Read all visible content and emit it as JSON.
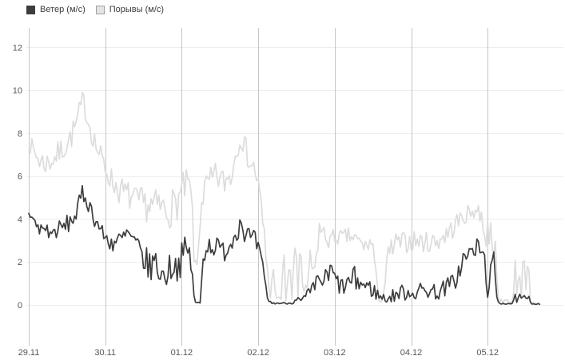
{
  "legend": {
    "items": [
      {
        "label": "Ветер (м/с)",
        "swatch_color": "#3d3d3d",
        "swatch_border": "#3d3d3d"
      },
      {
        "label": "Порывы (м/с)",
        "swatch_color": "#e4e4e4",
        "swatch_border": "#a0a0a0"
      }
    ]
  },
  "colors": {
    "background": "#ffffff",
    "grid_horizontal": "#ededed",
    "grid_vertical": "#c6c6c6",
    "axis_text": "#565656",
    "wind_line": "#3d3d3d",
    "gusts_line": "#dcdcdc"
  },
  "chart_data": {
    "type": "line",
    "title": "",
    "xlabel": "",
    "ylabel": "",
    "x_unit": "days since 29.11 00:00",
    "y_unit": "м/с",
    "grid": true,
    "legend_position": "top-left",
    "ylim": [
      0,
      12.5
    ],
    "xlim": [
      0,
      7.0
    ],
    "yticks": [
      0,
      2,
      4,
      6,
      8,
      10,
      12
    ],
    "xticks": [
      {
        "t": 0,
        "label": "29.11"
      },
      {
        "t": 1,
        "label": "30.11"
      },
      {
        "t": 2,
        "label": "01.12"
      },
      {
        "t": 3,
        "label": "02.12"
      },
      {
        "t": 4,
        "label": "03.12"
      },
      {
        "t": 5,
        "label": "04.12"
      },
      {
        "t": 6,
        "label": "05.12"
      }
    ],
    "sampling": {
      "step_days": 0.02,
      "t_end": 6.68,
      "noise_seed": 7
    },
    "series": [
      {
        "name": "Порывы (м/с)",
        "color": "#dcdcdc",
        "keyframes": [
          [
            0,
            7.6,
            0.4
          ],
          [
            0.07,
            7.1,
            0.5
          ],
          [
            0.15,
            6.7,
            0.6
          ],
          [
            0.25,
            6.6,
            0.6
          ],
          [
            0.35,
            6.9,
            0.6
          ],
          [
            0.45,
            7.3,
            0.6
          ],
          [
            0.55,
            7.8,
            0.6
          ],
          [
            0.63,
            8.5,
            0.6
          ],
          [
            0.71,
            9.6,
            0.5
          ],
          [
            0.76,
            8.8,
            0.5
          ],
          [
            0.83,
            8.0,
            0.6
          ],
          [
            0.9,
            7.2,
            0.6
          ],
          [
            1.0,
            6.4,
            0.6
          ],
          [
            1.1,
            5.7,
            0.6
          ],
          [
            1.2,
            5.3,
            0.7
          ],
          [
            1.3,
            5.1,
            0.7
          ],
          [
            1.4,
            4.8,
            0.7
          ],
          [
            1.5,
            4.7,
            0.8
          ],
          [
            1.6,
            4.6,
            0.8
          ],
          [
            1.7,
            4.6,
            0.8
          ],
          [
            1.8,
            4.4,
            0.9
          ],
          [
            1.9,
            4.6,
            0.9
          ],
          [
            2.0,
            5.2,
            0.9
          ],
          [
            2.05,
            5.5,
            0.8
          ],
          [
            2.08,
            5.6,
            0.8
          ],
          [
            2.13,
            5.0,
            0.7
          ],
          [
            2.17,
            1.5,
            0.4
          ],
          [
            2.21,
            2.0,
            0.6
          ],
          [
            2.25,
            4.8,
            0.7
          ],
          [
            2.32,
            5.5,
            0.7
          ],
          [
            2.35,
            5.6,
            0.7
          ],
          [
            2.45,
            6.0,
            0.7
          ],
          [
            2.55,
            5.7,
            0.7
          ],
          [
            2.65,
            6.1,
            0.7
          ],
          [
            2.72,
            7.3,
            0.6
          ],
          [
            2.77,
            7.9,
            0.5
          ],
          [
            2.83,
            7.3,
            0.6
          ],
          [
            2.9,
            6.6,
            0.6
          ],
          [
            2.97,
            6.2,
            0.6
          ],
          [
            3.03,
            4.8,
            0.7
          ],
          [
            3.08,
            3.0,
            0.9
          ],
          [
            3.16,
            0.3,
            0.2
          ],
          [
            3.2,
            1.9,
            0.3
          ],
          [
            3.23,
            0.2,
            0.15
          ],
          [
            3.31,
            0.3,
            0.2
          ],
          [
            3.33,
            3.1,
            0.2
          ],
          [
            3.36,
            0.3,
            0.2
          ],
          [
            3.41,
            2.0,
            0.3
          ],
          [
            3.44,
            0.3,
            0.2
          ],
          [
            3.49,
            3.2,
            0.3
          ],
          [
            3.52,
            0.5,
            0.3
          ],
          [
            3.55,
            3.3,
            0.3
          ],
          [
            3.58,
            0.6,
            0.4
          ],
          [
            3.64,
            0.5,
            0.4
          ],
          [
            3.68,
            2.6,
            0.4
          ],
          [
            3.71,
            1.0,
            0.5
          ],
          [
            3.76,
            2.2,
            0.6
          ],
          [
            3.8,
            3.6,
            0.5
          ],
          [
            3.87,
            3.2,
            0.5
          ],
          [
            3.95,
            3.0,
            0.5
          ],
          [
            4.02,
            3.2,
            0.4
          ],
          [
            4.1,
            3.1,
            0.4
          ],
          [
            4.18,
            3.2,
            0.4
          ],
          [
            4.26,
            3.1,
            0.4
          ],
          [
            4.33,
            2.9,
            0.4
          ],
          [
            4.4,
            2.7,
            0.4
          ],
          [
            4.45,
            2.9,
            0.35
          ],
          [
            4.5,
            2.8,
            0.4
          ],
          [
            4.56,
            0.5,
            0.4
          ],
          [
            4.63,
            0.3,
            0.25
          ],
          [
            4.7,
            2.2,
            0.7
          ],
          [
            4.78,
            2.8,
            0.6
          ],
          [
            4.9,
            2.9,
            0.5
          ],
          [
            5.05,
            3.0,
            0.5
          ],
          [
            5.2,
            2.9,
            0.5
          ],
          [
            5.35,
            3.0,
            0.5
          ],
          [
            5.5,
            3.4,
            0.5
          ],
          [
            5.62,
            3.9,
            0.5
          ],
          [
            5.72,
            4.2,
            0.4
          ],
          [
            5.82,
            4.4,
            0.4
          ],
          [
            5.88,
            4.4,
            0.4
          ],
          [
            5.95,
            3.8,
            0.7
          ],
          [
            6.0,
            3.0,
            1.2
          ],
          [
            6.04,
            4.2,
            0.4
          ],
          [
            6.07,
            1.0,
            0.7
          ],
          [
            6.1,
            3.0,
            1.0
          ],
          [
            6.13,
            0.3,
            0.2
          ],
          [
            6.33,
            0.08,
            0.05
          ],
          [
            6.36,
            1.9,
            0.2
          ],
          [
            6.385,
            0.3,
            0.2
          ],
          [
            6.41,
            2.0,
            0.3
          ],
          [
            6.44,
            0.4,
            0.3
          ],
          [
            6.47,
            2.6,
            0.2
          ],
          [
            6.5,
            0.5,
            0.3
          ],
          [
            6.53,
            2.2,
            0.3
          ],
          [
            6.56,
            0.1,
            0.05
          ],
          [
            6.68,
            0.05,
            0.03
          ]
        ]
      },
      {
        "name": "Ветер (м/с)",
        "color": "#3d3d3d",
        "keyframes": [
          [
            0,
            4.35,
            0.25
          ],
          [
            0.07,
            3.9,
            0.3
          ],
          [
            0.13,
            3.5,
            0.4
          ],
          [
            0.2,
            3.6,
            0.35
          ],
          [
            0.3,
            3.3,
            0.4
          ],
          [
            0.37,
            3.5,
            0.4
          ],
          [
            0.45,
            3.6,
            0.45
          ],
          [
            0.55,
            3.9,
            0.45
          ],
          [
            0.63,
            4.3,
            0.45
          ],
          [
            0.7,
            5.2,
            0.4
          ],
          [
            0.74,
            5.0,
            0.45
          ],
          [
            0.8,
            4.6,
            0.4
          ],
          [
            0.86,
            4.0,
            0.35
          ],
          [
            0.93,
            3.6,
            0.3
          ],
          [
            1.0,
            3.1,
            0.4
          ],
          [
            1.1,
            2.9,
            0.5
          ],
          [
            1.2,
            3.0,
            0.5
          ],
          [
            1.3,
            3.3,
            0.5
          ],
          [
            1.4,
            2.8,
            0.5
          ],
          [
            1.5,
            2.2,
            0.7
          ],
          [
            1.57,
            1.7,
            0.8
          ],
          [
            1.65,
            2.1,
            0.6
          ],
          [
            1.73,
            1.3,
            0.6
          ],
          [
            1.8,
            1.5,
            0.7
          ],
          [
            1.88,
            1.9,
            0.7
          ],
          [
            1.95,
            1.8,
            0.7
          ],
          [
            2.02,
            2.3,
            0.8
          ],
          [
            2.08,
            2.6,
            0.8
          ],
          [
            2.14,
            1.6,
            0.6
          ],
          [
            2.165,
            0.1,
            0.05
          ],
          [
            2.245,
            0.1,
            0.05
          ],
          [
            2.28,
            2.4,
            0.5
          ],
          [
            2.35,
            2.8,
            0.5
          ],
          [
            2.45,
            2.7,
            0.5
          ],
          [
            2.55,
            2.5,
            0.5
          ],
          [
            2.65,
            2.9,
            0.5
          ],
          [
            2.72,
            3.6,
            0.6
          ],
          [
            2.78,
            3.9,
            0.6
          ],
          [
            2.84,
            3.3,
            0.6
          ],
          [
            2.9,
            3.1,
            0.5
          ],
          [
            2.97,
            2.9,
            0.5
          ],
          [
            3.03,
            2.2,
            0.5
          ],
          [
            3.09,
            0.9,
            0.5
          ],
          [
            3.13,
            0.25,
            0.15
          ],
          [
            3.17,
            0.08,
            0.04
          ],
          [
            3.45,
            0.08,
            0.04
          ],
          [
            3.5,
            0.35,
            0.2
          ],
          [
            3.56,
            0.15,
            0.1
          ],
          [
            3.62,
            0.4,
            0.25
          ],
          [
            3.7,
            0.6,
            0.35
          ],
          [
            3.8,
            1.2,
            0.5
          ],
          [
            3.87,
            1.1,
            0.5
          ],
          [
            3.95,
            1.5,
            0.8
          ],
          [
            4.02,
            1.1,
            0.5
          ],
          [
            4.1,
            0.8,
            0.45
          ],
          [
            4.18,
            1.0,
            0.5
          ],
          [
            4.26,
            1.2,
            0.6
          ],
          [
            4.33,
            1.0,
            0.5
          ],
          [
            4.4,
            0.9,
            0.5
          ],
          [
            4.5,
            0.7,
            0.4
          ],
          [
            4.6,
            0.35,
            0.25
          ],
          [
            4.7,
            0.3,
            0.25
          ],
          [
            4.8,
            0.5,
            0.35
          ],
          [
            4.9,
            0.6,
            0.4
          ],
          [
            5.05,
            0.6,
            0.4
          ],
          [
            5.2,
            0.7,
            0.4
          ],
          [
            5.35,
            0.6,
            0.4
          ],
          [
            5.5,
            0.9,
            0.45
          ],
          [
            5.6,
            1.3,
            0.5
          ],
          [
            5.68,
            2.1,
            0.5
          ],
          [
            5.78,
            2.4,
            0.5
          ],
          [
            5.87,
            2.7,
            0.45
          ],
          [
            5.95,
            2.3,
            0.5
          ],
          [
            6.0,
            0.8,
            0.5
          ],
          [
            6.05,
            1.5,
            0.7
          ],
          [
            6.08,
            2.0,
            0.5
          ],
          [
            6.11,
            0.5,
            0.4
          ],
          [
            6.15,
            0.08,
            0.05
          ],
          [
            6.33,
            0.06,
            0.04
          ],
          [
            6.36,
            0.35,
            0.15
          ],
          [
            6.39,
            0.15,
            0.1
          ],
          [
            6.42,
            0.4,
            0.15
          ],
          [
            6.45,
            0.2,
            0.1
          ],
          [
            6.48,
            0.45,
            0.15
          ],
          [
            6.51,
            0.15,
            0.1
          ],
          [
            6.54,
            0.3,
            0.15
          ],
          [
            6.57,
            0.06,
            0.03
          ],
          [
            6.68,
            0.05,
            0.03
          ]
        ]
      }
    ]
  }
}
